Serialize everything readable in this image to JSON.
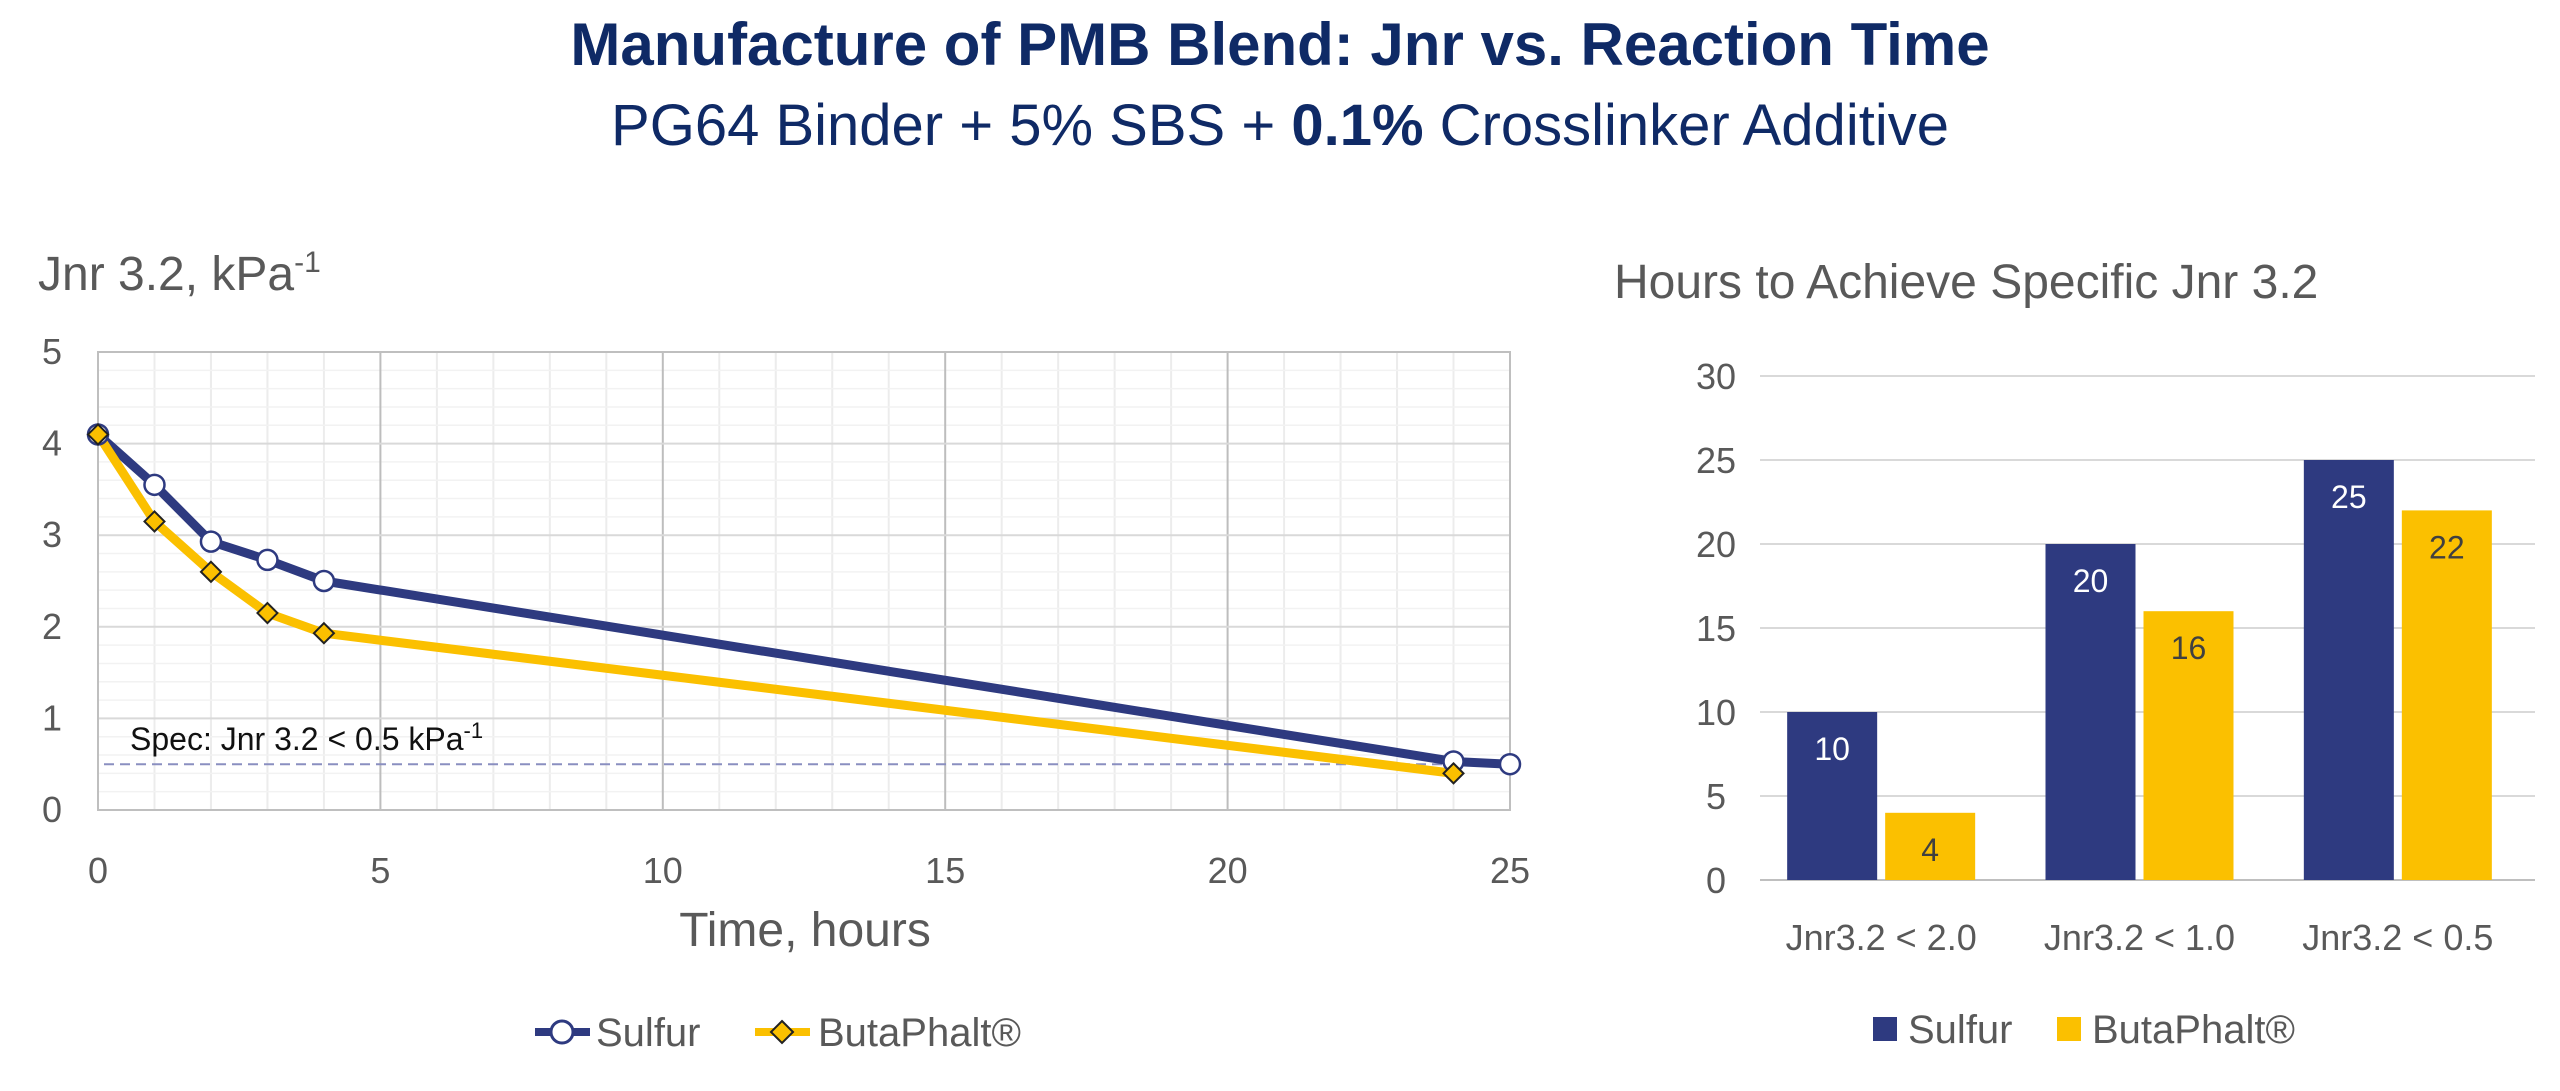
{
  "header": {
    "title": "Manufacture of PMB Blend: Jnr vs. Reaction Time",
    "subtitle_pre": "PG64 Binder + 5% SBS + ",
    "subtitle_bold": "0.1%",
    "subtitle_post": " Crosslinker Additive"
  },
  "chart_data": [
    {
      "type": "line",
      "title": "",
      "ylabel": "Jnr 3.2, kPa",
      "ylabel_sup": "-1",
      "xlabel": "Time, hours",
      "xlim": [
        0,
        25
      ],
      "ylim": [
        0,
        5
      ],
      "x_ticks": [
        "0",
        "5",
        "10",
        "15",
        "20",
        "25"
      ],
      "y_ticks": [
        "0",
        "1",
        "2",
        "3",
        "4",
        "5"
      ],
      "x_tick_values": [
        0,
        5,
        10,
        15,
        20,
        25
      ],
      "y_tick_values": [
        0,
        1,
        2,
        3,
        4,
        5
      ],
      "series": [
        {
          "name": "Sulfur",
          "color": "#2e3a80",
          "marker": "circle",
          "x": [
            0,
            1,
            2,
            3,
            4,
            24,
            25
          ],
          "y": [
            4.1,
            3.55,
            2.93,
            2.73,
            2.5,
            0.53,
            0.5
          ]
        },
        {
          "name": "ButaPhalt®",
          "color": "#fbc000",
          "marker": "diamond",
          "x": [
            0,
            1,
            2,
            3,
            4,
            24
          ],
          "y": [
            4.1,
            3.15,
            2.6,
            2.15,
            1.93,
            0.4
          ]
        }
      ],
      "reference_line": {
        "y": 0.5,
        "label": "Spec: Jnr 3.2 < 0.5 kPa",
        "label_sup": "-1",
        "color": "#8a8fc0"
      },
      "legend": "bottom"
    },
    {
      "type": "bar",
      "title": "Hours to Achieve Specific Jnr 3.2",
      "xlabel": "",
      "ylabel": "",
      "categories": [
        "Jnr3.2 < 2.0",
        "Jnr3.2 < 1.0",
        "Jnr3.2 < 0.5"
      ],
      "ylim": [
        0,
        30
      ],
      "y_ticks": [
        "0",
        "5",
        "10",
        "15",
        "20",
        "25",
        "30"
      ],
      "y_tick_values": [
        0,
        5,
        10,
        15,
        20,
        25,
        30
      ],
      "series": [
        {
          "name": "Sulfur",
          "color": "#2e3a80",
          "label_color": "#ffffff",
          "values": [
            10,
            20,
            25
          ]
        },
        {
          "name": "ButaPhalt®",
          "color": "#fbc000",
          "label_color": "#404040",
          "values": [
            4,
            16,
            22
          ]
        }
      ],
      "legend": "bottom"
    }
  ]
}
